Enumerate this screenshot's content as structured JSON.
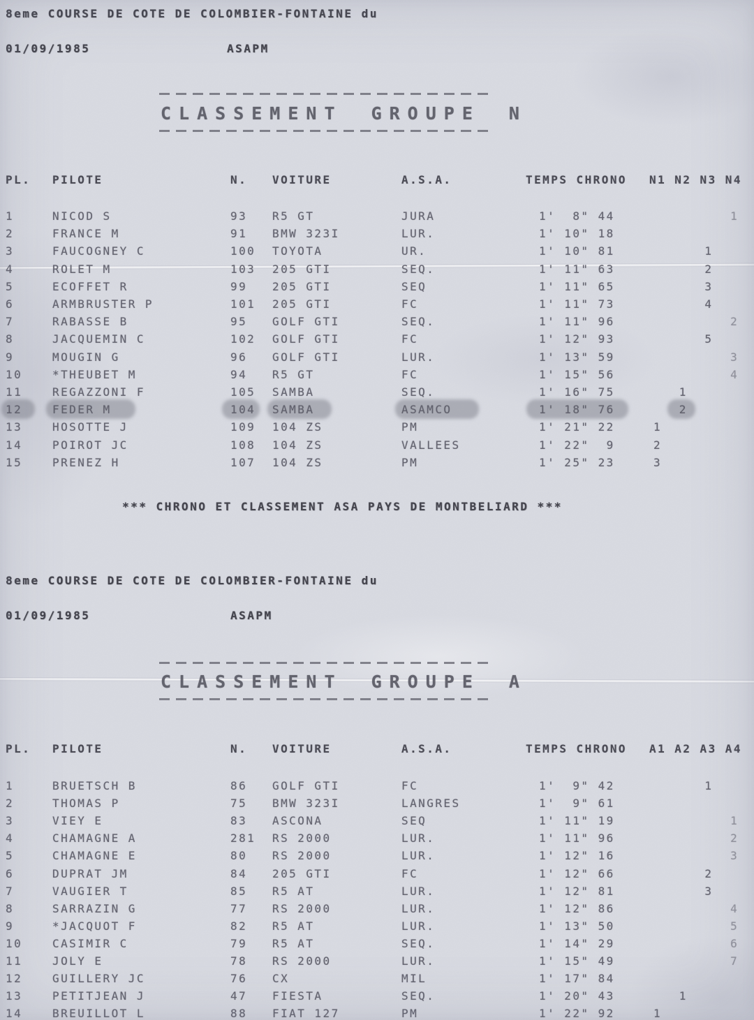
{
  "event": {
    "title": "8eme COURSE DE COTE DE COLOMBIER-FONTAINE du",
    "date": "01/09/1985",
    "organizer": "ASAPM"
  },
  "note": "*** CHRONO ET CLASSEMENT ASA PAYS DE MONTBELIARD ***",
  "columns": {
    "pl": "PL.",
    "pilote": "PILOTE",
    "num": "N.",
    "voiture": "VOITURE",
    "asa": "A.S.A.",
    "temps": "TEMPS CHRONO"
  },
  "group_n": {
    "title": "CLASSEMENT GROUPE N",
    "class_header": "N1 N2 N3 N4",
    "rows": [
      {
        "pl": "1",
        "pilote": "NICOD S",
        "num": "93",
        "voiture": "R5 GT",
        "asa": "JURA",
        "temps": "1'  8\" 44",
        "classes": [
          "",
          "",
          "",
          "1"
        ]
      },
      {
        "pl": "2",
        "pilote": "FRANCE M",
        "num": "91",
        "voiture": "BMW 323I",
        "asa": "LUR.",
        "temps": "1' 10\" 18",
        "classes": [
          "",
          "",
          "",
          ""
        ]
      },
      {
        "pl": "3",
        "pilote": "FAUCOGNEY C",
        "num": "100",
        "voiture": "TOYOTA",
        "asa": "UR.",
        "temps": "1' 10\" 81",
        "classes": [
          "",
          "",
          "1",
          ""
        ]
      },
      {
        "pl": "4",
        "pilote": "ROLET M",
        "num": "103",
        "voiture": "205 GTI",
        "asa": "SEQ.",
        "temps": "1' 11\" 63",
        "classes": [
          "",
          "",
          "2",
          ""
        ]
      },
      {
        "pl": "5",
        "pilote": "ECOFFET R",
        "num": "99",
        "voiture": "205 GTI",
        "asa": "SEQ",
        "temps": "1' 11\" 65",
        "classes": [
          "",
          "",
          "3",
          ""
        ]
      },
      {
        "pl": "6",
        "pilote": "ARMBRUSTER P",
        "num": "101",
        "voiture": "205 GTI",
        "asa": "FC",
        "temps": "1' 11\" 73",
        "classes": [
          "",
          "",
          "4",
          ""
        ]
      },
      {
        "pl": "7",
        "pilote": "RABASSE B",
        "num": "95",
        "voiture": "GOLF GTI",
        "asa": "SEQ.",
        "temps": "1' 11\" 96",
        "classes": [
          "",
          "",
          "",
          "2"
        ]
      },
      {
        "pl": "8",
        "pilote": "JACQUEMIN C",
        "num": "102",
        "voiture": "GOLF GTI",
        "asa": "FC",
        "temps": "1' 12\" 93",
        "classes": [
          "",
          "",
          "5",
          ""
        ]
      },
      {
        "pl": "9",
        "pilote": "MOUGIN G",
        "num": "96",
        "voiture": "GOLF GTI",
        "asa": "LUR.",
        "temps": "1' 13\" 59",
        "classes": [
          "",
          "",
          "",
          "3"
        ]
      },
      {
        "pl": "10",
        "pilote": "*THEUBET M",
        "num": "94",
        "voiture": "R5 GT",
        "asa": "FC",
        "temps": "1' 15\" 56",
        "classes": [
          "",
          "",
          "",
          "4"
        ]
      },
      {
        "pl": "11",
        "pilote": "REGAZZONI F",
        "num": "105",
        "voiture": "SAMBA",
        "asa": "SEQ.",
        "temps": "1' 16\" 75",
        "classes": [
          "",
          "1",
          "",
          ""
        ]
      },
      {
        "pl": "12",
        "pilote": "FEDER M",
        "num": "104",
        "voiture": "SAMBA",
        "asa": "ASAMCO",
        "temps": "1' 18\" 76",
        "classes": [
          "",
          "2",
          "",
          ""
        ],
        "highlight": true
      },
      {
        "pl": "13",
        "pilote": "HOSOTTE J",
        "num": "109",
        "voiture": "104 ZS",
        "asa": "PM",
        "temps": "1' 21\" 22",
        "classes": [
          "1",
          "",
          "",
          ""
        ]
      },
      {
        "pl": "14",
        "pilote": "POIROT JC",
        "num": "108",
        "voiture": "104 ZS",
        "asa": "VALLEES",
        "temps": "1' 22\"  9",
        "classes": [
          "2",
          "",
          "",
          ""
        ]
      },
      {
        "pl": "15",
        "pilote": "PRENEZ H",
        "num": "107",
        "voiture": "104 ZS",
        "asa": "PM",
        "temps": "1' 25\" 23",
        "classes": [
          "3",
          "",
          "",
          ""
        ]
      }
    ]
  },
  "group_a": {
    "title": "CLASSEMENT GROUPE A",
    "class_header": "A1 A2 A3 A4",
    "rows": [
      {
        "pl": "1",
        "pilote": "BRUETSCH B",
        "num": "86",
        "voiture": "GOLF GTI",
        "asa": "FC",
        "temps": "1'  9\" 42",
        "classes": [
          "",
          "",
          "1",
          ""
        ]
      },
      {
        "pl": "2",
        "pilote": "THOMAS P",
        "num": "75",
        "voiture": "BMW 323I",
        "asa": "LANGRES",
        "temps": "1'  9\" 61",
        "classes": [
          "",
          "",
          "",
          ""
        ]
      },
      {
        "pl": "3",
        "pilote": "VIEY E",
        "num": "83",
        "voiture": "ASCONA",
        "asa": "SEQ",
        "temps": "1' 11\" 19",
        "classes": [
          "",
          "",
          "",
          "1"
        ]
      },
      {
        "pl": "4",
        "pilote": "CHAMAGNE A",
        "num": "281",
        "voiture": "RS 2000",
        "asa": "LUR.",
        "temps": "1' 11\" 96",
        "classes": [
          "",
          "",
          "",
          "2"
        ]
      },
      {
        "pl": "5",
        "pilote": "CHAMAGNE E",
        "num": "80",
        "voiture": "RS 2000",
        "asa": "LUR.",
        "temps": "1' 12\" 16",
        "classes": [
          "",
          "",
          "",
          "3"
        ]
      },
      {
        "pl": "6",
        "pilote": "DUPRAT JM",
        "num": "84",
        "voiture": "205 GTI",
        "asa": "FC",
        "temps": "1' 12\" 66",
        "classes": [
          "",
          "",
          "2",
          ""
        ]
      },
      {
        "pl": "7",
        "pilote": "VAUGIER T",
        "num": "85",
        "voiture": "R5 AT",
        "asa": "LUR.",
        "temps": "1' 12\" 81",
        "classes": [
          "",
          "",
          "3",
          ""
        ]
      },
      {
        "pl": "8",
        "pilote": "SARRAZIN G",
        "num": "77",
        "voiture": "RS 2000",
        "asa": "LUR.",
        "temps": "1' 12\" 86",
        "classes": [
          "",
          "",
          "",
          "4"
        ]
      },
      {
        "pl": "9",
        "pilote": "*JACQUOT F",
        "num": "82",
        "voiture": "R5 AT",
        "asa": "LUR.",
        "temps": "1' 13\" 50",
        "classes": [
          "",
          "",
          "",
          "5"
        ]
      },
      {
        "pl": "10",
        "pilote": "CASIMIR C",
        "num": "79",
        "voiture": "R5 AT",
        "asa": "SEQ.",
        "temps": "1' 14\" 29",
        "classes": [
          "",
          "",
          "",
          "6"
        ]
      },
      {
        "pl": "11",
        "pilote": "JOLY E",
        "num": "78",
        "voiture": "RS 2000",
        "asa": "LUR.",
        "temps": "1' 15\" 49",
        "classes": [
          "",
          "",
          "",
          "7"
        ]
      },
      {
        "pl": "12",
        "pilote": "GUILLERY JC",
        "num": "76",
        "voiture": "CX",
        "asa": "MIL",
        "temps": "1' 17\" 84",
        "classes": [
          "",
          "",
          "",
          ""
        ]
      },
      {
        "pl": "13",
        "pilote": "PETITJEAN J",
        "num": "47",
        "voiture": "FIESTA",
        "asa": "SEQ.",
        "temps": "1' 20\" 43",
        "classes": [
          "",
          "1",
          "",
          ""
        ]
      },
      {
        "pl": "14",
        "pilote": "BREUILLOT L",
        "num": "88",
        "voiture": "FIAT 127",
        "asa": "PM",
        "temps": "1' 22\" 92",
        "classes": [
          "1",
          "",
          "",
          ""
        ]
      }
    ]
  }
}
